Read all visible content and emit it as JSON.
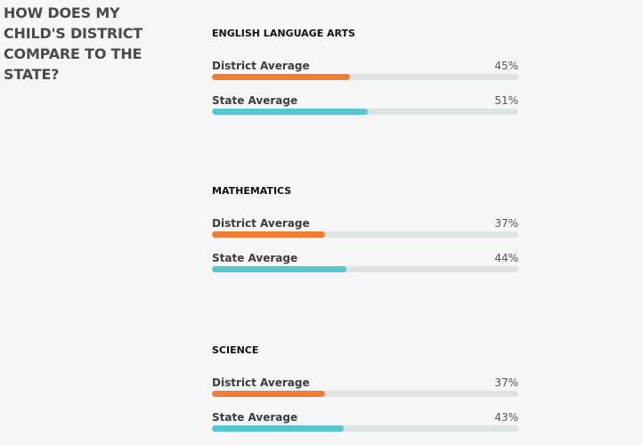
{
  "heading": "HOW DOES MY CHILD'S DISTRICT COMPARE TO THE STATE?",
  "colors": {
    "district": "#f07d36",
    "state": "#56c5cf",
    "track": "#dde3e5"
  },
  "subjects": [
    {
      "title": "ENGLISH LANGUAGE ARTS",
      "district": {
        "label": "District Average",
        "value": "45%",
        "percent": 45
      },
      "state": {
        "label": "State Average",
        "value": "51%",
        "percent": 51
      }
    },
    {
      "title": "MATHEMATICS",
      "district": {
        "label": "District Average",
        "value": "37%",
        "percent": 37
      },
      "state": {
        "label": "State Average",
        "value": "44%",
        "percent": 44
      }
    },
    {
      "title": "SCIENCE",
      "district": {
        "label": "District Average",
        "value": "37%",
        "percent": 37
      },
      "state": {
        "label": "State Average",
        "value": "43%",
        "percent": 43
      }
    }
  ]
}
